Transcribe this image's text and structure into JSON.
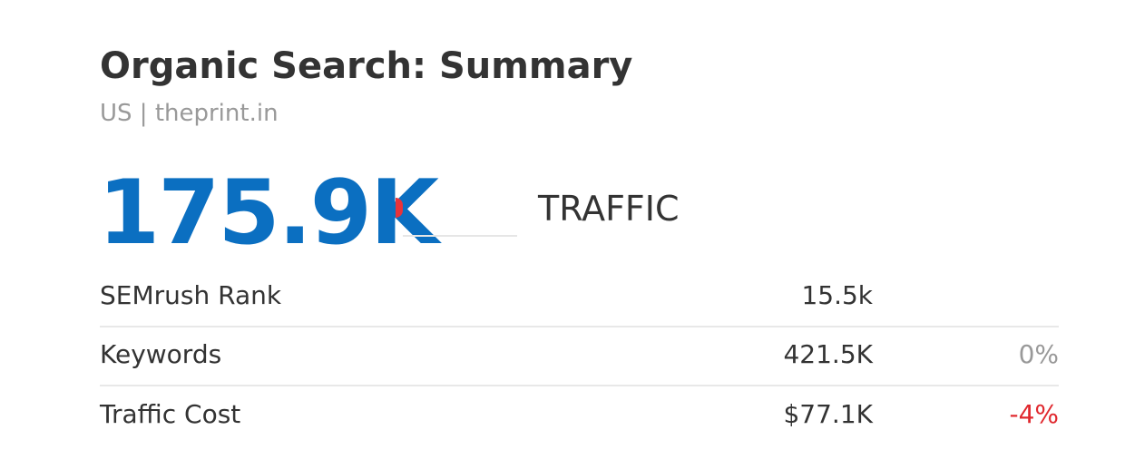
{
  "header": {
    "title": "Organic Search: Summary",
    "subtitle": "US | theprint.in"
  },
  "traffic": {
    "value": "175.9K",
    "label": "TRAFFIC"
  },
  "table": {
    "rows": [
      {
        "label": "SEMrush Rank",
        "value": "15.5k"
      },
      {
        "label": "Keywords",
        "value": "421.5K",
        "change": "0%",
        "change_color": "#999999"
      },
      {
        "label": "Traffic Cost",
        "value": "$77.1K",
        "change": "-4%",
        "change_color": "#e0282e"
      }
    ]
  }
}
